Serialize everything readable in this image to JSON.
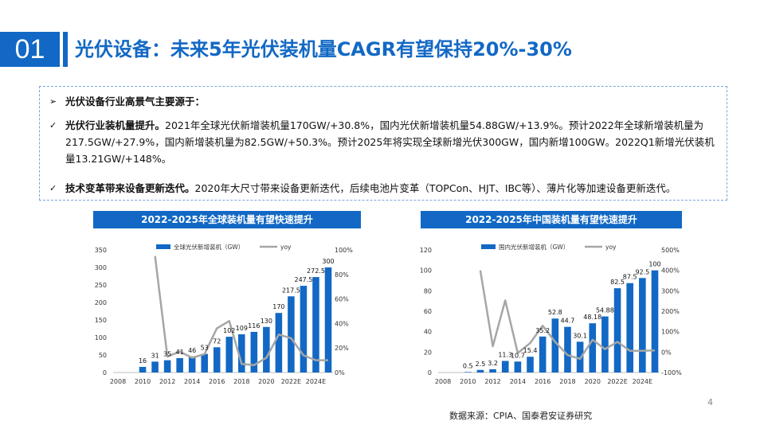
{
  "header": {
    "number": "01",
    "title": "光伏设备：未来5年光伏装机量CAGR有望保持20%-30%"
  },
  "summary": {
    "intro": "光伏设备行业高景气主要源于：",
    "point1_bold": "光伏行业装机量提升。",
    "point1_text": "2021年全球光伏新增装机量170GW/+30.8%，国内光伏新增装机量54.88GW/+13.9%。预计2022年全球新增装机量为217.5GW/+27.9%，国内新增装机量为82.5GW/+50.3%。预计2025年将实现全球新增光伏300GW，国内新增100GW。2022Q1新增光伏装机量13.21GW/+148%。",
    "point2_bold": "技术变革带来设备更新迭代。",
    "point2_text": "2020年大尺寸带来设备更新迭代，后续电池片变革（TOPCon、HJT、IBC等）、薄片化等加速设备更新迭代。"
  },
  "colors": {
    "accent": "#1268c4",
    "line": "#a6a6a6"
  },
  "chart_data": [
    {
      "type": "bar",
      "title": "2022-2025年全球装机量有望快速提升",
      "x": [
        2008,
        2009,
        2010,
        2011,
        2012,
        2013,
        2014,
        2015,
        2016,
        2017,
        2018,
        2019,
        2020,
        2021,
        2022,
        2023,
        2024,
        2025
      ],
      "x_tick_labels": [
        "2008",
        "2010",
        "2012",
        "2014",
        "2016",
        "2018",
        "2020",
        "2022E",
        "2024E"
      ],
      "series": [
        {
          "name": "全球光伏新增装机（GW）",
          "axis": "left",
          "values": [
            0,
            0,
            16,
            31,
            35,
            41,
            46,
            53,
            72,
            102,
            109,
            116,
            130,
            170,
            217.5,
            247.5,
            272.5,
            300
          ],
          "labels": [
            "",
            "",
            "16",
            "31",
            "35",
            "41",
            "46",
            "53",
            "72",
            "102",
            "109",
            "116",
            "130",
            "170",
            "217.5",
            "247.5",
            "272.5",
            "300"
          ]
        },
        {
          "name": "yoy",
          "axis": "right",
          "type": "line",
          "values": [
            null,
            null,
            null,
            95,
            13,
            17,
            12,
            15,
            36,
            42,
            7,
            6,
            12,
            31,
            28,
            14,
            10,
            10
          ]
        }
      ],
      "left_axis": {
        "min": 0,
        "max": 350,
        "ticks": [
          "0",
          "50",
          "100",
          "150",
          "200",
          "250",
          "300",
          "350"
        ]
      },
      "right_axis": {
        "min": 0,
        "max": 100,
        "ticks": [
          "0%",
          "20%",
          "40%",
          "60%",
          "80%",
          "100%"
        ]
      },
      "legend": "top"
    },
    {
      "type": "bar",
      "title": "2022-2025年中国装机量有望快速提升",
      "x": [
        2008,
        2009,
        2010,
        2011,
        2012,
        2013,
        2014,
        2015,
        2016,
        2017,
        2018,
        2019,
        2020,
        2021,
        2022,
        2023,
        2024,
        2025
      ],
      "x_tick_labels": [
        "2008",
        "2010",
        "2012",
        "2014",
        "2016",
        "2018",
        "2020",
        "2022E",
        "2024E"
      ],
      "series": [
        {
          "name": "国内光伏新增装机（GW）",
          "axis": "left",
          "values": [
            0,
            0,
            0.5,
            2.5,
            3.2,
            11.3,
            10.7,
            15.4,
            35.2,
            52.8,
            44.7,
            30.1,
            48.18,
            54.88,
            82.5,
            87.5,
            92.5,
            100
          ],
          "labels": [
            "",
            "",
            "0.5",
            "2.5",
            "3.2",
            "11.3",
            "10.7",
            "15.4",
            "35.2",
            "52.8",
            "44.7",
            "30.1",
            "48.18",
            "54.88",
            "82.5",
            "87.5",
            "92.5",
            "100"
          ]
        },
        {
          "name": "yoy",
          "axis": "right",
          "type": "line",
          "values": [
            null,
            null,
            null,
            400,
            28,
            253,
            -5,
            44,
            129,
            50,
            -15,
            -33,
            60,
            14,
            50,
            6,
            6,
            8
          ]
        }
      ],
      "left_axis": {
        "min": 0,
        "max": 120,
        "ticks": [
          "0",
          "20",
          "40",
          "60",
          "80",
          "100",
          "120"
        ]
      },
      "right_axis": {
        "min": -100,
        "max": 500,
        "ticks": [
          "-100%",
          "0%",
          "100%",
          "200%",
          "300%",
          "400%",
          "500%"
        ]
      },
      "legend": "top"
    }
  ],
  "source": "数据来源：CPIA、国泰君安证券研究",
  "page_number": "4"
}
